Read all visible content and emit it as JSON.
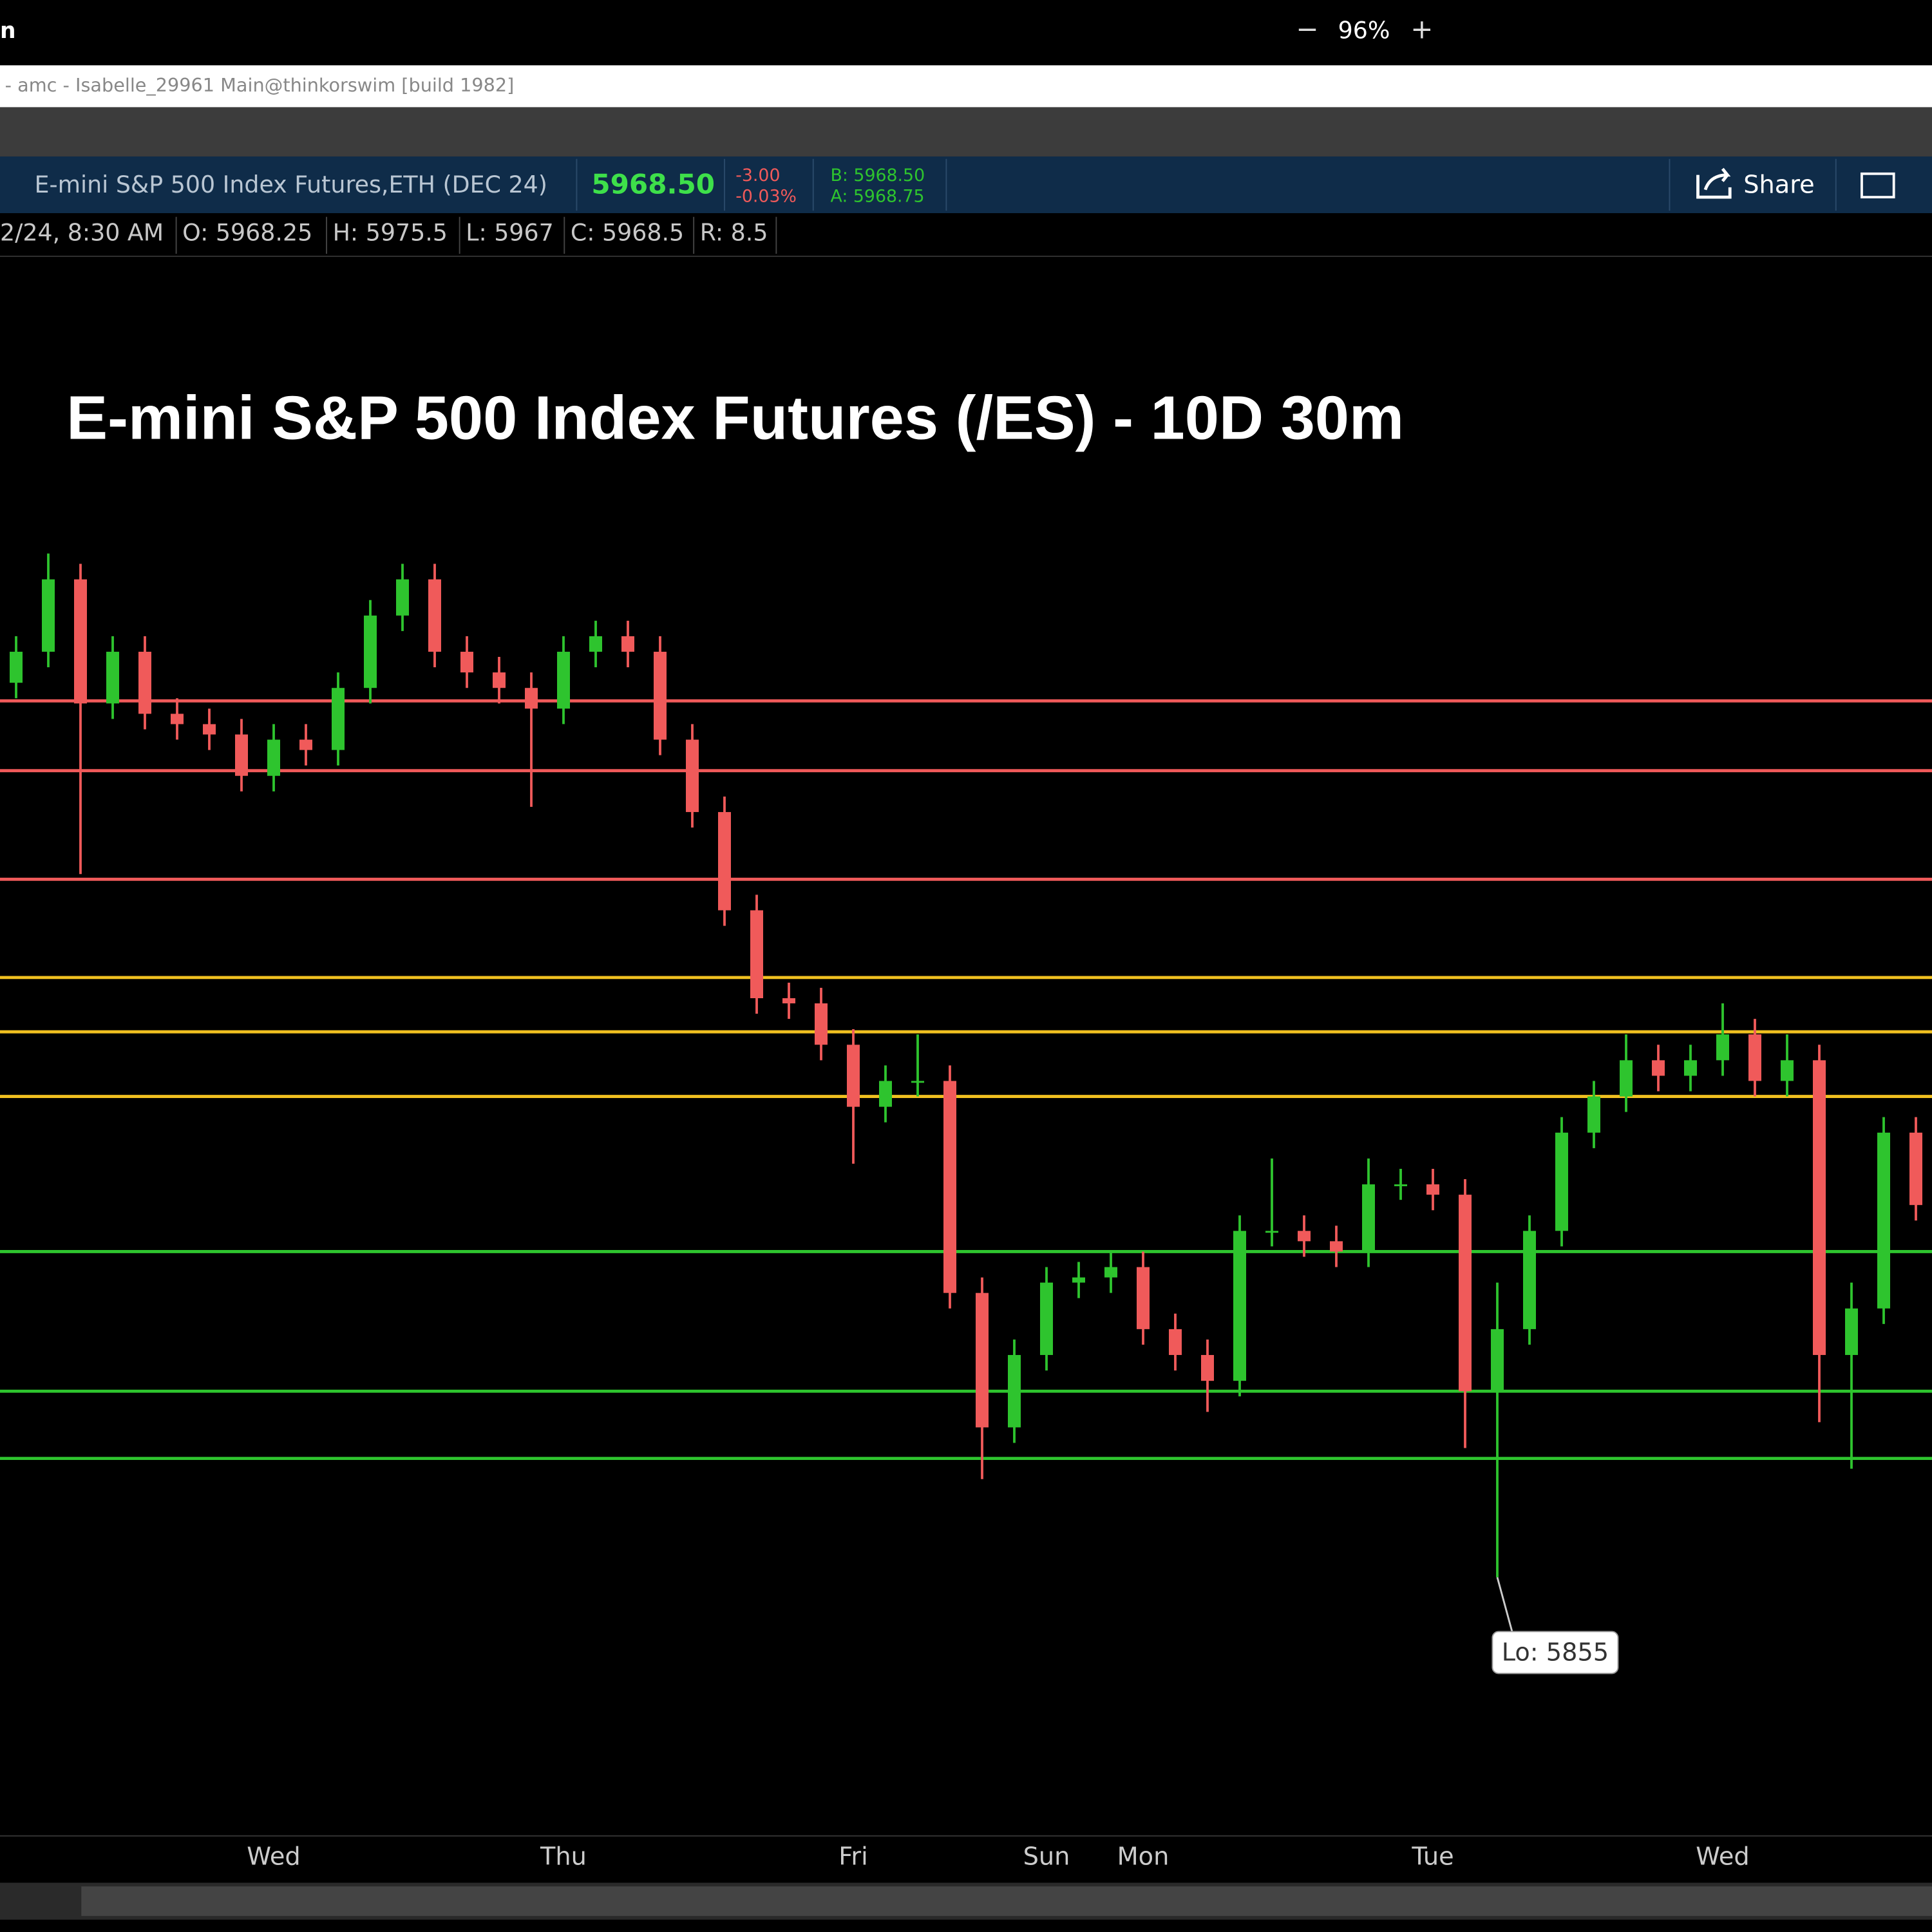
{
  "ui": {
    "window": {
      "app_label": "n",
      "zoom_out": "−",
      "zoom": "96%",
      "zoom_in": "+"
    },
    "title_bar": "- amc - Isabelle_29961 Main@thinkorswim [build 1982]",
    "symbol_bar": {
      "symbol": "E-mini S&P 500 Index Futures,ETH (DEC 24)",
      "last": "5968.50",
      "change": "-3.00",
      "change_pct": "-0.03%",
      "bid": "B: 5968.50",
      "ask": "A: 5968.75",
      "share": "Share"
    },
    "info_row": [
      "2/24, 8:30 AM",
      "O: 5968.25",
      "H: 5975.5",
      "L: 5967",
      "C: 5968.5",
      "R: 8.5"
    ]
  },
  "chart_data": {
    "type": "candlestick",
    "title": "E-mini S&P 500 Index Futures (/ES) - 10D 30m",
    "categories": [
      null,
      null,
      null,
      null,
      null,
      null,
      null,
      null,
      "Wed",
      null,
      null,
      null,
      null,
      null,
      null,
      null,
      null,
      "Thu",
      null,
      null,
      null,
      null,
      null,
      null,
      null,
      null,
      "Fri",
      null,
      null,
      null,
      null,
      null,
      "Sun",
      null,
      null,
      "Mon",
      null,
      null,
      null,
      null,
      null,
      null,
      null,
      null,
      "Tue",
      null,
      null,
      null,
      null,
      null,
      null,
      null,
      null,
      "Wed",
      null,
      null,
      null,
      null,
      null,
      null
    ],
    "open": [
      6028,
      6034,
      6048,
      6024,
      6034,
      6022,
      6020,
      6018,
      6010,
      6017,
      6015,
      6027,
      6041,
      6048,
      6034,
      6030,
      6027,
      6023,
      6034,
      6037,
      6034,
      6017,
      6003,
      5984,
      5967,
      5966,
      5958,
      5946,
      5951,
      5951,
      5910,
      5884,
      5898,
      5912,
      5913,
      5915,
      5903,
      5898,
      5893,
      5922,
      5922,
      5920,
      5918,
      5931,
      5931,
      5929,
      5891,
      5903,
      5922,
      5941,
      5948,
      5955,
      5952,
      5955,
      5960,
      5951,
      5955,
      5898,
      5907,
      5941
    ],
    "high": [
      6037,
      6053,
      6051,
      6037,
      6037,
      6025,
      6023,
      6021,
      6020,
      6020,
      6030,
      6044,
      6051,
      6051,
      6037,
      6033,
      6030,
      6037,
      6040,
      6040,
      6037,
      6020,
      6006,
      5987,
      5970,
      5969,
      5961,
      5954,
      5960,
      5954,
      5913,
      5901,
      5915,
      5916,
      5918,
      5918,
      5906,
      5901,
      5925,
      5936,
      5925,
      5923,
      5936,
      5934,
      5934,
      5932,
      5912,
      5925,
      5944,
      5951,
      5960,
      5958,
      5958,
      5966,
      5963,
      5960,
      5958,
      5912,
      5944,
      5944
    ],
    "low": [
      6025,
      6031,
      5991,
      6021,
      6019,
      6017,
      6015,
      6007,
      6007,
      6012,
      6012,
      6024,
      6038,
      6031,
      6027,
      6024,
      6004,
      6020,
      6031,
      6031,
      6014,
      6000,
      5981,
      5964,
      5963,
      5955,
      5935,
      5943,
      5948,
      5907,
      5874,
      5881,
      5895,
      5909,
      5910,
      5900,
      5895,
      5887,
      5890,
      5919,
      5917,
      5915,
      5915,
      5928,
      5926,
      5880,
      5855,
      5900,
      5919,
      5938,
      5945,
      5949,
      5949,
      5952,
      5948,
      5948,
      5885,
      5876,
      5904,
      5924
    ],
    "close": [
      6034,
      6048,
      6024,
      6034,
      6022,
      6020,
      6018,
      6010,
      6017,
      6015,
      6027,
      6041,
      6048,
      6034,
      6030,
      6027,
      6023,
      6034,
      6037,
      6034,
      6017,
      6003,
      5984,
      5967,
      5966,
      5958,
      5946,
      5951,
      5951,
      5910,
      5884,
      5898,
      5912,
      5913,
      5915,
      5903,
      5898,
      5893,
      5922,
      5922,
      5920,
      5918,
      5931,
      5931,
      5929,
      5891,
      5903,
      5922,
      5941,
      5948,
      5955,
      5952,
      5955,
      5960,
      5951,
      5955,
      5898,
      5907,
      5941,
      5927
    ],
    "ylim": [
      5805,
      6110
    ],
    "up_color": "#2ec42e",
    "down_color": "#f05a5a",
    "levels": [
      {
        "value": 6024.5,
        "color": "#f05a5a"
      },
      {
        "value": 6011,
        "color": "#f05a5a"
      },
      {
        "value": 5990,
        "color": "#f05a5a"
      },
      {
        "value": 5971,
        "color": "#f0c020"
      },
      {
        "value": 5960.5,
        "color": "#f0c020"
      },
      {
        "value": 5948,
        "color": "#f0c020"
      },
      {
        "value": 5918,
        "color": "#2ec42e"
      },
      {
        "value": 5891,
        "color": "#2ec42e"
      },
      {
        "value": 5878,
        "color": "#2ec42e"
      }
    ],
    "annotation": {
      "label": "Lo: 5855",
      "value": 5855
    }
  }
}
